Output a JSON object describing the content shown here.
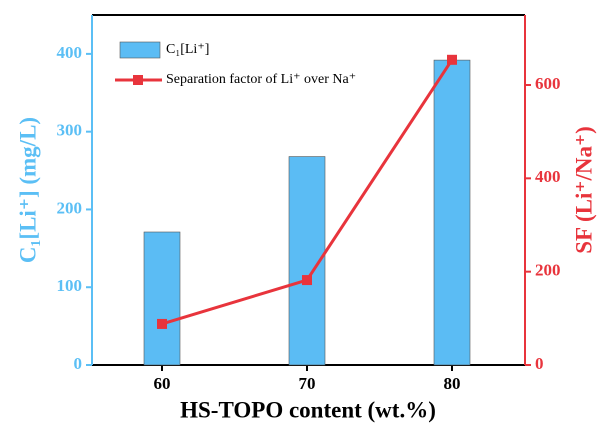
{
  "chart_data": {
    "type": "bar",
    "x_label": "HS-TOPO content (wt.%)",
    "y_label": "C₁[Li⁺] (mg/L)",
    "y2_label": "SF (Li⁺/Na⁺)",
    "categories": [
      "60",
      "70",
      "80"
    ],
    "series": [
      {
        "name": "C₁[Li⁺]",
        "type": "bar",
        "color": "#5bbcf4",
        "values": [
          171,
          268,
          392
        ]
      },
      {
        "name": "Separation factor of Li⁺ over Na⁺",
        "type": "line",
        "axis": "y2",
        "color": "#e8343c",
        "values": [
          88,
          182,
          654
        ]
      }
    ],
    "ylim": [
      0,
      450
    ],
    "yticks": [
      0,
      100,
      200,
      300,
      400
    ],
    "y_color": "#5bbff5",
    "y2lim": [
      0,
      750
    ],
    "y2ticks": [
      0,
      200,
      400,
      600
    ],
    "y2_color": "#e8343c",
    "legend": "upper left"
  }
}
